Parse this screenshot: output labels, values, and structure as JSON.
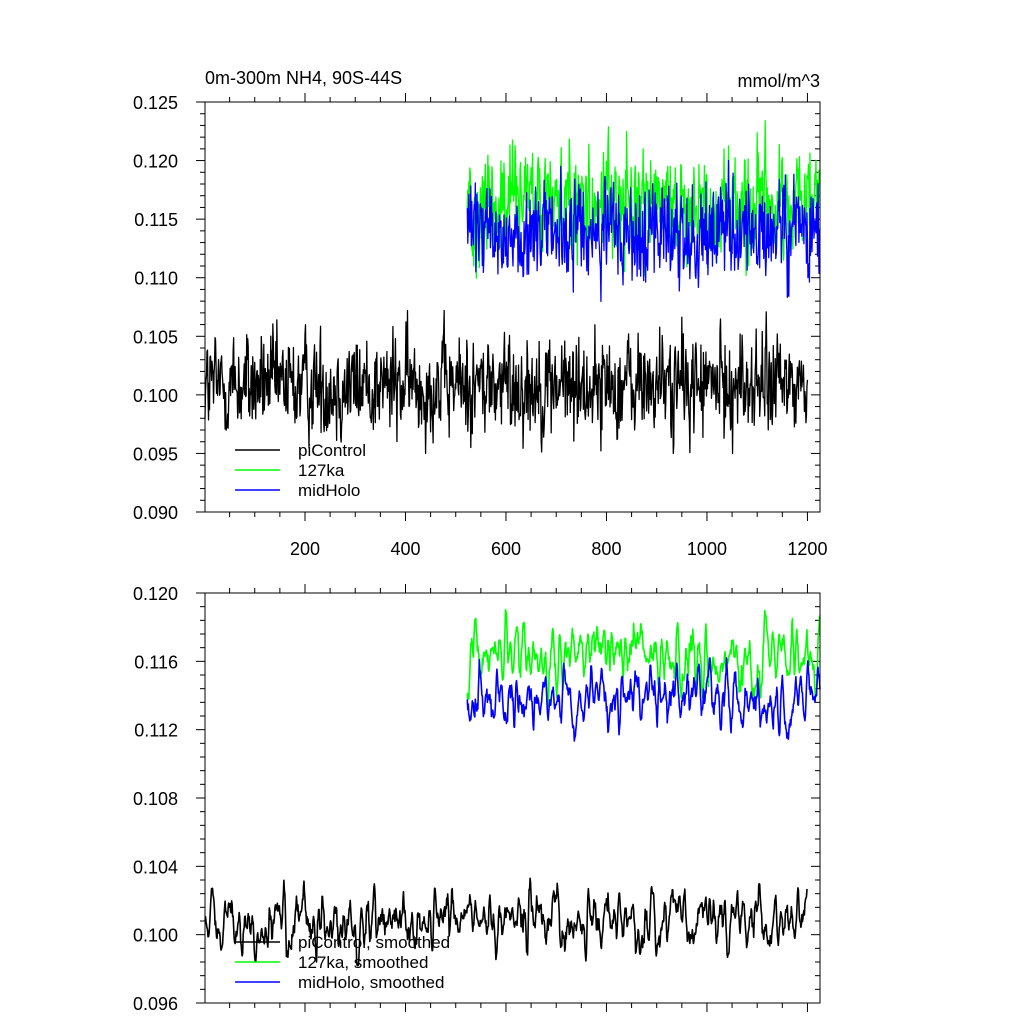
{
  "chart_data": [
    {
      "type": "line",
      "title": "0m-300m NH4, 90S-44S",
      "units": "mmol/m^3",
      "xlim": [
        1,
        1225
      ],
      "ylim": [
        0.09,
        0.125
      ],
      "x_ticks": [
        200,
        400,
        600,
        800,
        1000,
        1200
      ],
      "x_tick_labels": [
        "200",
        "400",
        "600",
        "800",
        "1000",
        "1200"
      ],
      "y_ticks": [
        0.09,
        0.095,
        0.1,
        0.105,
        0.11,
        0.115,
        0.12,
        0.125
      ],
      "y_tick_labels": [
        "0.090",
        "0.095",
        "0.100",
        "0.105",
        "0.110",
        "0.115",
        "0.120",
        "0.125"
      ],
      "legend_position": "bottom-left",
      "series": [
        {
          "name": "piControl",
          "color": "#000000",
          "x_start": 1,
          "x_end": 1200,
          "mean": 0.1008,
          "noise": 0.0021,
          "min": 0.095,
          "max": 0.1072
        },
        {
          "name": "127ka",
          "color": "#00ff00",
          "x_start": 523,
          "x_end": 1225,
          "mean": 0.1163,
          "noise": 0.0023,
          "min": 0.109,
          "max": 0.1234
        },
        {
          "name": "midHolo",
          "color": "#0000ff",
          "x_start": 523,
          "x_end": 1225,
          "mean": 0.1139,
          "noise": 0.0021,
          "min": 0.107,
          "max": 0.1205
        }
      ]
    },
    {
      "type": "line",
      "xlim": [
        1,
        1225
      ],
      "ylim": [
        0.096,
        0.12
      ],
      "x_ticks": [
        200,
        400,
        600,
        800,
        1000,
        1200
      ],
      "y_ticks": [
        0.096,
        0.1,
        0.104,
        0.108,
        0.112,
        0.116,
        0.12
      ],
      "y_tick_labels": [
        "0.096",
        "0.100",
        "0.104",
        "0.108",
        "0.112",
        "0.116",
        "0.120"
      ],
      "legend_position": "bottom-left",
      "series": [
        {
          "name": "piControl, smoothed",
          "color": "#000000",
          "x_start": 1,
          "x_end": 1200,
          "mean": 0.1008,
          "noise": 0.0009,
          "min": 0.0982,
          "max": 0.1033
        },
        {
          "name": "127ka, smoothed",
          "color": "#00ff00",
          "x_start": 523,
          "x_end": 1225,
          "mean": 0.1163,
          "noise": 0.001,
          "min": 0.1132,
          "max": 0.1192
        },
        {
          "name": "midHolo, smoothed",
          "color": "#0000ff",
          "x_start": 523,
          "x_end": 1225,
          "mean": 0.1138,
          "noise": 0.0009,
          "min": 0.1104,
          "max": 0.1162
        }
      ]
    }
  ]
}
